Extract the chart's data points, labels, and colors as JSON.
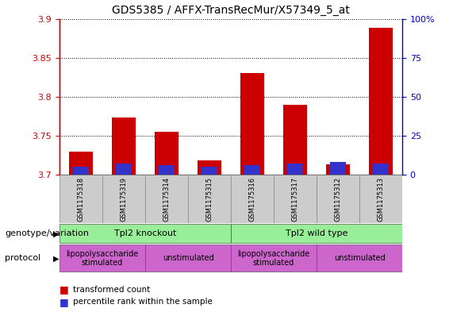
{
  "title": "GDS5385 / AFFX-TransRecMur/X57349_5_at",
  "samples": [
    "GSM1175318",
    "GSM1175319",
    "GSM1175314",
    "GSM1175315",
    "GSM1175316",
    "GSM1175317",
    "GSM1175312",
    "GSM1175313"
  ],
  "transformed_count": [
    3.73,
    3.773,
    3.755,
    3.718,
    3.83,
    3.79,
    3.713,
    3.888
  ],
  "percentile_rank": [
    5,
    7,
    6,
    5,
    6,
    7,
    8,
    7
  ],
  "y_min": 3.7,
  "y_max": 3.9,
  "y_ticks": [
    3.7,
    3.75,
    3.8,
    3.85,
    3.9
  ],
  "ytick_labels": [
    "3.7",
    "3.75",
    "3.8",
    "3.85",
    "3.9"
  ],
  "y2_ticks": [
    0,
    25,
    50,
    75,
    100
  ],
  "y2tick_labels": [
    "0",
    "25",
    "50",
    "75",
    "100%"
  ],
  "bar_color_red": "#cc0000",
  "bar_color_blue": "#3333cc",
  "background_color": "#cccccc",
  "plot_bg_color": "#ffffff",
  "genotype_groups": [
    {
      "label": "Tpl2 knockout",
      "start": 0,
      "end": 4,
      "color": "#99ee99"
    },
    {
      "label": "Tpl2 wild type",
      "start": 4,
      "end": 8,
      "color": "#99ee99"
    }
  ],
  "protocol_groups": [
    {
      "label": "lipopolysaccharide\nstimulated",
      "start": 0,
      "end": 2,
      "color": "#cc66cc"
    },
    {
      "label": "unstimulated",
      "start": 2,
      "end": 4,
      "color": "#cc66cc"
    },
    {
      "label": "lipopolysaccharide\nstimulated",
      "start": 4,
      "end": 6,
      "color": "#cc66cc"
    },
    {
      "label": "unstimulated",
      "start": 6,
      "end": 8,
      "color": "#cc66cc"
    }
  ],
  "legend_red_label": "transformed count",
  "legend_blue_label": "percentile rank within the sample",
  "genotype_label": "genotype/variation",
  "protocol_label": "protocol",
  "left_axis_color": "#cc0000",
  "right_axis_color": "#0000cc",
  "title_fontsize": 10,
  "tick_fontsize": 8,
  "bar_width": 0.55
}
